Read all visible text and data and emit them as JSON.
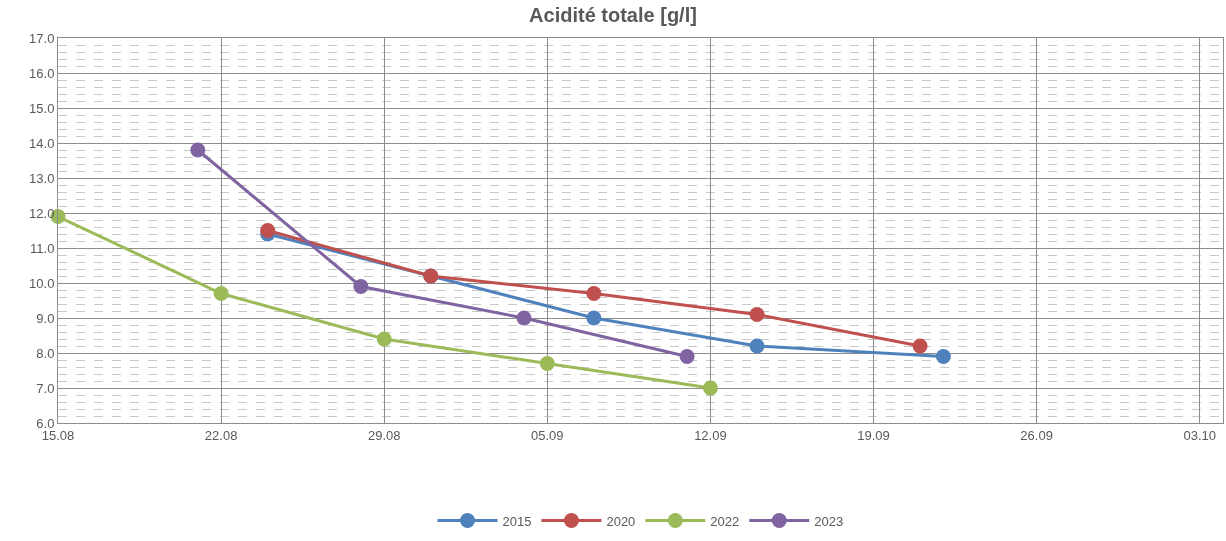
{
  "chart_data": {
    "type": "line",
    "title": "Acidité totale [g/l]",
    "series": [
      {
        "name": "2015",
        "color": "#4f81bd",
        "x": [
          "--08-24",
          "--08-31",
          "--09-07",
          "--09-14",
          "--09-22"
        ],
        "values": [
          11.4,
          10.2,
          9.0,
          8.2,
          7.9
        ]
      },
      {
        "name": "2020",
        "color": "#c0504d",
        "x": [
          "--08-24",
          "--08-31",
          "--09-07",
          "--09-14",
          "--09-21"
        ],
        "values": [
          11.5,
          10.2,
          9.7,
          9.1,
          8.2
        ]
      },
      {
        "name": "2022",
        "color": "#9bbb59",
        "x": [
          "--08-15",
          "--08-22",
          "--08-29",
          "--09-05",
          "--09-12"
        ],
        "values": [
          11.9,
          9.7,
          8.4,
          7.7,
          7.0
        ]
      },
      {
        "name": "2023",
        "color": "#8064a2",
        "x": [
          "--08-21",
          "--08-28",
          "--09-04",
          "--09-11"
        ],
        "values": [
          13.8,
          9.9,
          9.0,
          7.9
        ]
      }
    ],
    "xlim": [
      "--08-15",
      "--10-04"
    ],
    "xticks": [
      {
        "value": "--08-15",
        "label": "15.08"
      },
      {
        "value": "--08-22",
        "label": "22.08"
      },
      {
        "value": "--08-29",
        "label": "29.08"
      },
      {
        "value": "--09-05",
        "label": "05.09"
      },
      {
        "value": "--09-12",
        "label": "12.09"
      },
      {
        "value": "--09-19",
        "label": "19.09"
      },
      {
        "value": "--09-26",
        "label": "26.09"
      },
      {
        "value": "--10-03",
        "label": "03.10"
      }
    ],
    "ylim": [
      6,
      17
    ],
    "yticks": [
      {
        "value": 6,
        "label": "6.0"
      },
      {
        "value": 7,
        "label": "7.0"
      },
      {
        "value": 8,
        "label": "8.0"
      },
      {
        "value": 9,
        "label": "9.0"
      },
      {
        "value": 10,
        "label": "10.0"
      },
      {
        "value": 11,
        "label": "11.0"
      },
      {
        "value": 12,
        "label": "12.0"
      },
      {
        "value": 13,
        "label": "13.0"
      },
      {
        "value": 14,
        "label": "14.0"
      },
      {
        "value": 15,
        "label": "15.0"
      },
      {
        "value": 16,
        "label": "16.0"
      },
      {
        "value": 17,
        "label": "17.0"
      }
    ],
    "grid": true,
    "legend": "bottom",
    "marker": "circle",
    "line_style": "solid"
  }
}
